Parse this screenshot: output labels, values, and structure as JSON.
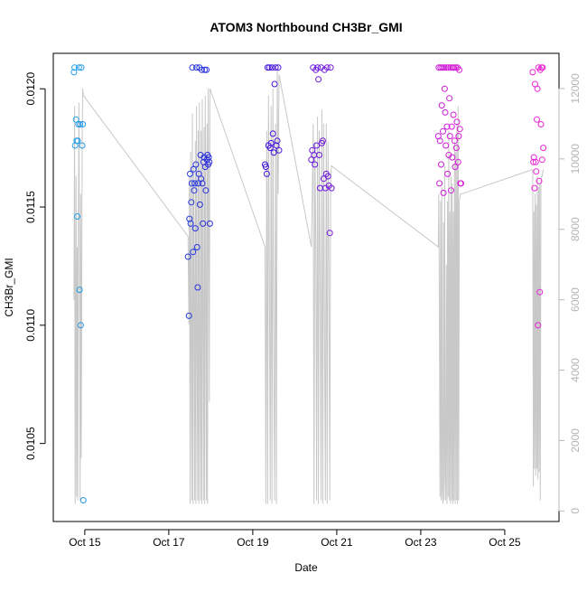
{
  "chart_data": {
    "type": "scatter",
    "title": "ATOM3 Northbound CH3Br_GMI",
    "xlabel": "Date",
    "ylabel": "CH3Br_GMI",
    "xlim": [
      "2017-10-14T06:00",
      "2017-10-26T07:00"
    ],
    "ylim": [
      0.01017,
      0.01215
    ],
    "y2lim": [
      -300,
      13000
    ],
    "x_ticks": [
      {
        "label": "Oct 15",
        "value": "2017-10-15"
      },
      {
        "label": "Oct 17",
        "value": "2017-10-17"
      },
      {
        "label": "Oct 19",
        "value": "2017-10-19"
      },
      {
        "label": "Oct 21",
        "value": "2017-10-21"
      },
      {
        "label": "Oct 23",
        "value": "2017-10-23"
      },
      {
        "label": "Oct 25",
        "value": "2017-10-25"
      }
    ],
    "y_ticks": [
      {
        "label": "0.0105",
        "value": 0.0105
      },
      {
        "label": "0.0110",
        "value": 0.011
      },
      {
        "label": "0.0115",
        "value": 0.0115
      },
      {
        "label": "0.0120",
        "value": 0.012
      }
    ],
    "y2_ticks": [
      {
        "label": "0",
        "value": 0
      },
      {
        "label": "2000",
        "value": 2000
      },
      {
        "label": "4000",
        "value": 4000
      },
      {
        "label": "6000",
        "value": 6000
      },
      {
        "label": "8000",
        "value": 8000
      },
      {
        "label": "10000",
        "value": 10000
      },
      {
        "label": "12000",
        "value": 12000
      }
    ],
    "grid": false,
    "legend": "none",
    "colors": {
      "altitude_line": "#c8c8c8",
      "point_gradient": [
        "#29b6e8",
        "#1a4fe0",
        "#3a10d8",
        "#8a1ee0",
        "#d81cd8",
        "#f026d6"
      ]
    },
    "flights": [
      {
        "x": [
          "2017-10-14T17:50",
          "2017-10-14T18:10",
          "2017-10-14T18:30",
          "2017-10-14T19:00",
          "2017-10-14T19:20",
          "2017-10-14T19:40",
          "2017-10-14T20:00",
          "2017-10-14T20:20",
          "2017-10-14T20:40",
          "2017-10-14T21:00",
          "2017-10-14T21:20",
          "2017-10-14T21:40",
          "2017-10-14T22:00",
          "2017-10-14T22:30",
          "2017-10-14T22:50",
          "2017-10-14T23:10"
        ],
        "y": [
          0.01207,
          0.01209,
          0.01176,
          0.01187,
          0.01178,
          0.01146,
          0.01178,
          0.01185,
          0.01209,
          0.01115,
          0.01185,
          0.011,
          0.01209,
          0.01176,
          0.01185,
          0.01026
        ],
        "altitude": [
          6000,
          11500,
          200,
          9500,
          400,
          7500,
          300,
          8200,
          11600,
          6800,
          300,
          9000,
          1500,
          10500,
          12000,
          11800
        ]
      },
      {
        "x": [
          "2017-10-17T11:00",
          "2017-10-17T11:30",
          "2017-10-17T11:50",
          "2017-10-17T12:10",
          "2017-10-17T12:30",
          "2017-10-17T12:50",
          "2017-10-17T13:10",
          "2017-10-17T13:30",
          "2017-10-17T13:50",
          "2017-10-17T14:10",
          "2017-10-17T14:30",
          "2017-10-17T14:50",
          "2017-10-17T15:10",
          "2017-10-17T15:30",
          "2017-10-17T15:50",
          "2017-10-17T16:10",
          "2017-10-17T16:30",
          "2017-10-17T16:50",
          "2017-10-17T17:10",
          "2017-10-17T17:30",
          "2017-10-17T17:50",
          "2017-10-17T18:10",
          "2017-10-17T18:30",
          "2017-10-17T18:50",
          "2017-10-17T19:10",
          "2017-10-17T19:30",
          "2017-10-17T19:50",
          "2017-10-17T20:10",
          "2017-10-17T20:30",
          "2017-10-17T20:50",
          "2017-10-17T21:10",
          "2017-10-17T21:30",
          "2017-10-17T21:50",
          "2017-10-17T22:10",
          "2017-10-17T22:30",
          "2017-10-17T22:50",
          "2017-10-17T23:10",
          "2017-10-17T23:30"
        ],
        "y": [
          0.01129,
          0.01104,
          0.01145,
          0.01164,
          0.01143,
          0.01152,
          0.0116,
          0.01209,
          0.01131,
          0.01166,
          0.01157,
          0.0116,
          0.01141,
          0.01168,
          0.01209,
          0.01133,
          0.01116,
          0.0116,
          0.01164,
          0.01209,
          0.01151,
          0.01172,
          0.01162,
          0.01208,
          0.0116,
          0.01143,
          0.01169,
          0.01171,
          0.01208,
          0.01167,
          0.01157,
          0.01208,
          0.0117,
          0.01172,
          0.01168,
          0.01171,
          0.01169,
          0.01143
        ],
        "altitude": [
          7800,
          5300,
          9500,
          200,
          10200,
          4500,
          300,
          11300,
          200,
          9800,
          5800,
          300,
          10500,
          200,
          11500,
          5000,
          300,
          10800,
          200,
          11600,
          4800,
          300,
          10800,
          200,
          11700,
          5200,
          300,
          10900,
          200,
          11800,
          6000,
          300,
          11000,
          200,
          12000,
          9000,
          3100,
          12000
        ]
      },
      {
        "x": [
          "2017-10-19T07:00",
          "2017-10-19T07:30",
          "2017-10-19T08:00",
          "2017-10-19T08:30",
          "2017-10-19T09:00",
          "2017-10-19T09:30",
          "2017-10-19T10:00",
          "2017-10-19T10:30",
          "2017-10-19T11:00",
          "2017-10-19T11:30",
          "2017-10-19T12:00",
          "2017-10-19T12:30",
          "2017-10-19T13:00",
          "2017-10-19T13:30",
          "2017-10-19T14:00",
          "2017-10-19T14:30",
          "2017-10-19T15:00"
        ],
        "y": [
          0.01168,
          0.01167,
          0.01164,
          0.01209,
          0.01176,
          0.01209,
          0.01175,
          0.01177,
          0.01209,
          0.01181,
          0.01173,
          0.01202,
          0.01209,
          0.01176,
          0.01178,
          0.01209,
          0.01174
        ],
        "altitude": [
          7500,
          200,
          10800,
          200,
          11800,
          6500,
          300,
          11500,
          200,
          12000,
          4000,
          300,
          11000,
          200,
          12500,
          9000,
          12400
        ]
      },
      {
        "x": [
          "2017-10-20T09:30",
          "2017-10-20T10:00",
          "2017-10-20T10:30",
          "2017-10-20T11:00",
          "2017-10-20T11:30",
          "2017-10-20T12:00",
          "2017-10-20T12:30",
          "2017-10-20T13:00",
          "2017-10-20T13:30",
          "2017-10-20T14:00",
          "2017-10-20T14:30",
          "2017-10-20T15:00",
          "2017-10-20T15:30",
          "2017-10-20T16:00",
          "2017-10-20T16:30",
          "2017-10-20T17:00",
          "2017-10-20T17:30",
          "2017-10-20T18:00",
          "2017-10-20T18:30",
          "2017-10-20T19:00",
          "2017-10-20T19:30",
          "2017-10-20T20:00",
          "2017-10-20T20:30",
          "2017-10-20T21:00"
        ],
        "y": [
          0.0117,
          0.01174,
          0.01209,
          0.01172,
          0.01168,
          0.01208,
          0.01176,
          0.01209,
          0.01204,
          0.01172,
          0.01158,
          0.01209,
          0.01177,
          0.01178,
          0.01162,
          0.01208,
          0.01158,
          0.01164,
          0.01209,
          0.01163,
          0.01159,
          0.01139,
          0.01209,
          0.01158
        ],
        "altitude": [
          7500,
          9000,
          11000,
          200,
          10500,
          7500,
          300,
          11200,
          200,
          10800,
          6500,
          300,
          11400,
          200,
          11000,
          5500,
          300,
          11000,
          200,
          10500,
          7000,
          300,
          9500,
          9800
        ]
      },
      {
        "x": [
          "2017-10-23T10:00",
          "2017-10-23T10:20",
          "2017-10-23T10:40",
          "2017-10-23T11:00",
          "2017-10-23T11:20",
          "2017-10-23T11:40",
          "2017-10-23T12:00",
          "2017-10-23T12:20",
          "2017-10-23T12:40",
          "2017-10-23T13:00",
          "2017-10-23T13:20",
          "2017-10-23T13:40",
          "2017-10-23T14:00",
          "2017-10-23T14:20",
          "2017-10-23T14:40",
          "2017-10-23T15:00",
          "2017-10-23T15:20",
          "2017-10-23T15:40",
          "2017-10-23T16:00",
          "2017-10-23T16:20",
          "2017-10-23T16:40",
          "2017-10-23T17:00",
          "2017-10-23T17:20",
          "2017-10-23T17:40",
          "2017-10-23T18:00",
          "2017-10-23T18:20",
          "2017-10-23T18:40",
          "2017-10-23T19:00",
          "2017-10-23T19:20",
          "2017-10-23T19:40",
          "2017-10-23T20:00",
          "2017-10-23T20:20",
          "2017-10-23T20:40",
          "2017-10-23T21:00",
          "2017-10-23T21:20",
          "2017-10-23T21:40",
          "2017-10-23T22:00",
          "2017-10-23T22:20",
          "2017-10-23T22:40",
          "2017-10-23T23:00"
        ],
        "y": [
          0.0118,
          0.01209,
          0.0116,
          0.01178,
          0.01209,
          0.01168,
          0.01193,
          0.01209,
          0.01182,
          0.01156,
          0.01209,
          0.012,
          0.0119,
          0.01176,
          0.01209,
          0.01184,
          0.01164,
          0.01209,
          0.01172,
          0.01196,
          0.0118,
          0.01209,
          0.01157,
          0.01184,
          0.01171,
          0.01209,
          0.01189,
          0.01209,
          0.01178,
          0.01167,
          0.01209,
          0.01175,
          0.01186,
          0.01209,
          0.01169,
          0.0118,
          0.01208,
          0.01183,
          0.0116,
          0.0116
        ],
        "altitude": [
          7500,
          9000,
          5500,
          400,
          8800,
          300,
          9200,
          600,
          200,
          8200,
          300,
          9800,
          1000,
          300,
          7000,
          200,
          8800,
          400,
          10800,
          300,
          8500,
          200,
          9500,
          300,
          9300,
          200,
          8500,
          300,
          10500,
          200,
          10200,
          300,
          11000,
          200,
          11500,
          300,
          8800,
          8900,
          9000,
          9000
        ]
      },
      {
        "x": [
          "2017-10-25T16:00",
          "2017-10-25T16:20",
          "2017-10-25T16:40",
          "2017-10-25T17:00",
          "2017-10-25T17:20",
          "2017-10-25T17:40",
          "2017-10-25T18:00",
          "2017-10-25T18:20",
          "2017-10-25T18:40",
          "2017-10-25T19:00",
          "2017-10-25T19:20",
          "2017-10-25T19:40",
          "2017-10-25T20:00",
          "2017-10-25T20:20",
          "2017-10-25T20:40",
          "2017-10-25T21:00",
          "2017-10-25T21:20",
          "2017-10-25T21:40",
          "2017-10-25T22:00"
        ],
        "y": [
          0.01207,
          0.01169,
          0.01171,
          0.01158,
          0.01202,
          0.01169,
          0.01165,
          0.01187,
          0.012,
          0.011,
          0.01209,
          0.01161,
          0.01114,
          0.01208,
          0.01185,
          0.01209,
          0.0117,
          0.01209,
          0.01175
        ],
        "altitude": [
          9700,
          700,
          8500,
          1200,
          9000,
          1000,
          8700,
          1200,
          9500,
          900,
          9200,
          1100,
          9300,
          300,
          9400,
          9500,
          9500,
          9600,
          9700
        ]
      }
    ]
  }
}
